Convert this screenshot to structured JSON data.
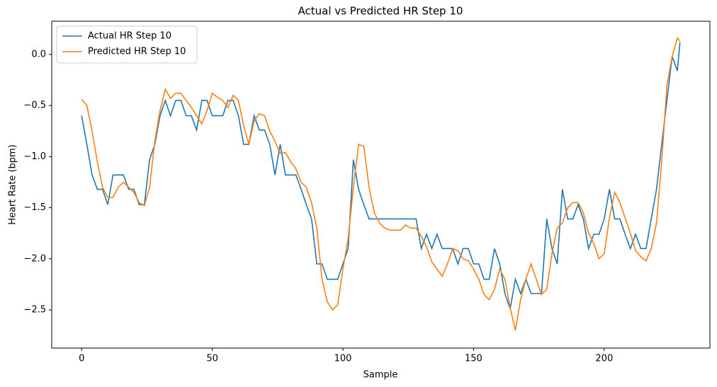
{
  "chart_data": {
    "type": "line",
    "title": "Actual vs Predicted HR Step 10",
    "x_label": "Sample",
    "y_label": "Heart Rate (bpm)",
    "x": [
      0,
      2,
      4,
      6,
      8,
      10,
      12,
      14,
      16,
      18,
      20,
      22,
      24,
      26,
      28,
      30,
      32,
      34,
      36,
      38,
      40,
      42,
      44,
      46,
      48,
      50,
      52,
      54,
      56,
      58,
      60,
      62,
      64,
      66,
      68,
      70,
      72,
      74,
      76,
      78,
      80,
      82,
      84,
      86,
      88,
      90,
      92,
      94,
      96,
      98,
      100,
      102,
      104,
      106,
      108,
      110,
      112,
      114,
      116,
      118,
      120,
      122,
      124,
      126,
      128,
      130,
      132,
      134,
      136,
      138,
      140,
      142,
      144,
      146,
      148,
      150,
      152,
      154,
      156,
      158,
      160,
      162,
      164,
      166,
      168,
      170,
      172,
      174,
      176,
      178,
      180,
      182,
      184,
      186,
      188,
      190,
      192,
      194,
      196,
      198,
      200,
      202,
      204,
      206,
      208,
      210,
      212,
      214,
      216,
      218,
      220,
      222,
      224,
      226,
      228,
      229
    ],
    "series": [
      {
        "name": "Actual HR Step 10",
        "color": "#1f77b4",
        "values": [
          -0.6,
          -0.88,
          -1.18,
          -1.32,
          -1.32,
          -1.47,
          -1.18,
          -1.18,
          -1.18,
          -1.32,
          -1.32,
          -1.47,
          -1.47,
          -1.03,
          -0.88,
          -0.6,
          -0.45,
          -0.6,
          -0.45,
          -0.45,
          -0.6,
          -0.6,
          -0.74,
          -0.45,
          -0.45,
          -0.6,
          -0.6,
          -0.6,
          -0.45,
          -0.45,
          -0.6,
          -0.88,
          -0.88,
          -0.6,
          -0.74,
          -0.74,
          -0.88,
          -1.18,
          -0.88,
          -1.18,
          -1.18,
          -1.18,
          -1.32,
          -1.47,
          -1.61,
          -2.05,
          -2.05,
          -2.2,
          -2.2,
          -2.2,
          -2.05,
          -1.9,
          -1.03,
          -1.32,
          -1.47,
          -1.61,
          -1.61,
          -1.61,
          -1.61,
          -1.61,
          -1.61,
          -1.61,
          -1.61,
          -1.61,
          -1.61,
          -1.9,
          -1.76,
          -1.9,
          -1.76,
          -1.9,
          -1.9,
          -1.9,
          -2.05,
          -1.9,
          -1.9,
          -2.05,
          -2.05,
          -2.2,
          -2.2,
          -1.9,
          -2.05,
          -2.34,
          -2.49,
          -2.2,
          -2.34,
          -2.2,
          -2.34,
          -2.34,
          -2.34,
          -1.61,
          -1.9,
          -2.05,
          -1.32,
          -1.61,
          -1.61,
          -1.47,
          -1.61,
          -1.9,
          -1.76,
          -1.76,
          -1.61,
          -1.32,
          -1.61,
          -1.61,
          -1.76,
          -1.9,
          -1.76,
          -1.9,
          -1.9,
          -1.61,
          -1.32,
          -0.88,
          -0.45,
          -0.02,
          -0.16,
          0.12
        ]
      },
      {
        "name": "Predicted HR Step 10",
        "color": "#ff7f0e",
        "values": [
          -0.44,
          -0.5,
          -0.75,
          -1.05,
          -1.3,
          -1.4,
          -1.4,
          -1.3,
          -1.25,
          -1.3,
          -1.35,
          -1.45,
          -1.48,
          -1.3,
          -0.85,
          -0.55,
          -0.34,
          -0.43,
          -0.38,
          -0.38,
          -0.45,
          -0.52,
          -0.6,
          -0.68,
          -0.55,
          -0.38,
          -0.42,
          -0.45,
          -0.52,
          -0.4,
          -0.45,
          -0.7,
          -0.88,
          -0.65,
          -0.58,
          -0.6,
          -0.75,
          -0.85,
          -0.97,
          -0.96,
          -1.05,
          -1.12,
          -1.25,
          -1.3,
          -1.45,
          -1.7,
          -2.2,
          -2.42,
          -2.5,
          -2.45,
          -2.1,
          -1.8,
          -1.3,
          -0.88,
          -0.9,
          -1.3,
          -1.55,
          -1.65,
          -1.7,
          -1.72,
          -1.72,
          -1.72,
          -1.67,
          -1.7,
          -1.7,
          -1.78,
          -1.88,
          -2.03,
          -2.1,
          -2.17,
          -2.05,
          -1.9,
          -1.92,
          -2.0,
          -2.02,
          -2.1,
          -2.2,
          -2.35,
          -2.4,
          -2.3,
          -2.1,
          -2.2,
          -2.48,
          -2.7,
          -2.4,
          -2.2,
          -2.05,
          -2.2,
          -2.35,
          -2.3,
          -1.95,
          -1.7,
          -1.65,
          -1.5,
          -1.45,
          -1.45,
          -1.55,
          -1.75,
          -1.85,
          -2.0,
          -1.95,
          -1.6,
          -1.35,
          -1.45,
          -1.6,
          -1.75,
          -1.92,
          -1.98,
          -2.02,
          -1.9,
          -1.65,
          -1.05,
          -0.3,
          -0.02,
          0.16,
          0.13
        ]
      }
    ],
    "xlim": [
      -11.45,
      240.45
    ],
    "xticks": [
      0,
      50,
      100,
      150,
      200
    ],
    "ylim": [
      -2.874,
      0.325
    ],
    "yticks": [
      {
        "value": 0,
        "label": "0.0"
      },
      {
        "value": -0.5,
        "label": "−0.5"
      },
      {
        "value": -1.0,
        "label": "−1.0"
      },
      {
        "value": -1.5,
        "label": "−1.5"
      },
      {
        "value": -2.0,
        "label": "−2.0"
      },
      {
        "value": -2.5,
        "label": "−2.5"
      }
    ],
    "legend": "upper left"
  }
}
